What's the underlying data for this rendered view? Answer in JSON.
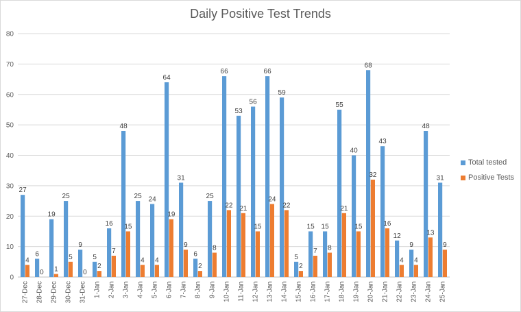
{
  "chart_data": {
    "type": "bar",
    "title": "Daily Positive Test Trends",
    "xlabel": "",
    "ylabel": "",
    "ylim": [
      0,
      80
    ],
    "yticks": [
      0,
      10,
      20,
      30,
      40,
      50,
      60,
      70,
      80
    ],
    "grid": true,
    "legend_position": "right",
    "categories": [
      "27-Dec",
      "28-Dec",
      "29-Dec",
      "30-Dec",
      "31-Dec",
      "1-Jan",
      "2-Jan",
      "3-Jan",
      "4-Jan",
      "5-Jan",
      "6-Jan",
      "7-Jan",
      "8-Jan",
      "9-Jan",
      "10-Jan",
      "11-Jan",
      "12-Jan",
      "13-Jan",
      "14-Jan",
      "15-Jan",
      "16-Jan",
      "17-Jan",
      "18-Jan",
      "19-Jan",
      "20-Jan",
      "21-Jan",
      "22-Jan",
      "23-Jan",
      "24-Jan",
      "25-Jan"
    ],
    "series": [
      {
        "name": "Total tested",
        "color": "#5b9bd5",
        "values": [
          27,
          6,
          19,
          25,
          9,
          5,
          16,
          48,
          25,
          24,
          64,
          31,
          6,
          25,
          66,
          53,
          56,
          66,
          59,
          5,
          15,
          15,
          55,
          40,
          68,
          43,
          12,
          9,
          48,
          31
        ]
      },
      {
        "name": "Positive Tests",
        "color": "#ed7d31",
        "values": [
          4,
          0,
          1,
          5,
          0,
          2,
          7,
          15,
          4,
          4,
          19,
          9,
          2,
          8,
          22,
          21,
          15,
          24,
          22,
          2,
          7,
          8,
          21,
          15,
          32,
          16,
          4,
          4,
          13,
          9
        ]
      }
    ]
  }
}
